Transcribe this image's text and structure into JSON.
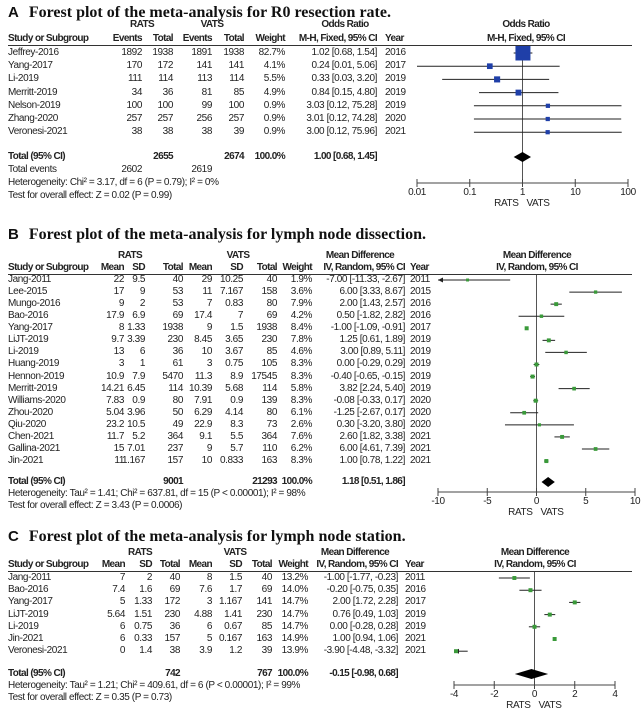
{
  "panels": {
    "A": {
      "letter": "A",
      "title": "Forest plot of the meta-analysis for R0 resection rate.",
      "groups": [
        "RATS",
        "VATS",
        "Odds Ratio"
      ],
      "columns": [
        "Study or Subgroup",
        "Events",
        "Total",
        "Events",
        "Total",
        "Weight",
        "M-H, Fixed, 95% CI",
        "Year"
      ],
      "plot_header": [
        "Odds Ratio",
        "M-H, Fixed, 95% CI"
      ],
      "rows": [
        [
          "Jeffrey-2016",
          "1892",
          "1938",
          "1891",
          "1938",
          "82.7%",
          "1.02 [0.68, 1.54]",
          "2016"
        ],
        [
          "Yang-2017",
          "170",
          "172",
          "141",
          "141",
          "4.1%",
          "0.24 [0.01, 5.06]",
          "2017"
        ],
        [
          "Li-2019",
          "111",
          "114",
          "113",
          "114",
          "5.5%",
          "0.33 [0.03, 3.20]",
          "2019"
        ],
        [
          "Merritt-2019",
          "34",
          "36",
          "81",
          "85",
          "4.9%",
          "0.84 [0.15, 4.80]",
          "2019"
        ],
        [
          "Nelson-2019",
          "100",
          "100",
          "99",
          "100",
          "0.9%",
          "3.03 [0.12, 75.28]",
          "2019"
        ],
        [
          "Zhang-2020",
          "257",
          "257",
          "256",
          "257",
          "0.9%",
          "3.01 [0.12, 74.28]",
          "2020"
        ],
        [
          "Veronesi-2021",
          "38",
          "38",
          "38",
          "39",
          "0.9%",
          "3.00 [0.12, 75.96]",
          "2021"
        ]
      ],
      "total": [
        "Total (95% CI)",
        "",
        "2655",
        "",
        "2674",
        "100.0%",
        "1.00 [0.68, 1.45]",
        ""
      ],
      "total_events": [
        "Total events",
        "2602",
        "",
        "2619"
      ],
      "heterogeneity": "Heterogeneity: Chi² = 3.17, df = 6 (P = 0.79); I² = 0%",
      "overall_effect": "Test for overall effect: Z = 0.02 (P = 0.99)",
      "axis_ticks": [
        "0.01",
        "0.1",
        "1",
        "10",
        "100"
      ],
      "axis_labels": [
        "RATS",
        "VATS"
      ],
      "marker_color": "#1f3fa8"
    },
    "B": {
      "letter": "B",
      "title": "Forest plot of the meta-analysis for lymph node dissection.",
      "groups": [
        "RATS",
        "VATS",
        "Mean Difference"
      ],
      "columns": [
        "Study or Subgroup",
        "Mean",
        "SD",
        "Total",
        "Mean",
        "SD",
        "Total",
        "Weight",
        "IV, Random, 95% CI",
        "Year"
      ],
      "plot_header": [
        "Mean Difference",
        "IV, Random, 95% CI"
      ],
      "rows": [
        [
          "Jang-2011",
          "22",
          "9.5",
          "40",
          "29",
          "10.25",
          "40",
          "1.9%",
          "-7.00 [-11.33, -2.67]",
          "2011"
        ],
        [
          "Lee-2015",
          "17",
          "9",
          "53",
          "11",
          "7.167",
          "158",
          "3.6%",
          "6.00 [3.33, 8.67]",
          "2015"
        ],
        [
          "Mungo-2016",
          "9",
          "2",
          "53",
          "7",
          "0.83",
          "80",
          "7.9%",
          "2.00 [1.43, 2.57]",
          "2016"
        ],
        [
          "Bao-2016",
          "17.9",
          "6.9",
          "69",
          "17.4",
          "7",
          "69",
          "4.2%",
          "0.50 [-1.82, 2.82]",
          "2016"
        ],
        [
          "Yang-2017",
          "8",
          "1.33",
          "1938",
          "9",
          "1.5",
          "1938",
          "8.4%",
          "-1.00 [-1.09, -0.91]",
          "2017"
        ],
        [
          "LiJT-2019",
          "9.7",
          "3.39",
          "230",
          "8.45",
          "3.65",
          "230",
          "7.8%",
          "1.25 [0.61, 1.89]",
          "2019"
        ],
        [
          "Li-2019",
          "13",
          "6",
          "36",
          "10",
          "3.67",
          "85",
          "4.6%",
          "3.00 [0.89, 5.11]",
          "2019"
        ],
        [
          "Huang-2019",
          "3",
          "1",
          "61",
          "3",
          "0.75",
          "105",
          "8.3%",
          "0.00 [-0.29, 0.29]",
          "2019"
        ],
        [
          "Hennon-2019",
          "10.9",
          "7.9",
          "5470",
          "11.3",
          "8.9",
          "17545",
          "8.3%",
          "-0.40 [-0.65, -0.15]",
          "2019"
        ],
        [
          "Merritt-2019",
          "14.21",
          "6.45",
          "114",
          "10.39",
          "5.68",
          "114",
          "5.8%",
          "3.82 [2.24, 5.40]",
          "2019"
        ],
        [
          "Williams-2020",
          "7.83",
          "0.9",
          "80",
          "7.91",
          "0.9",
          "139",
          "8.3%",
          "-0.08 [-0.33, 0.17]",
          "2020"
        ],
        [
          "Zhou-2020",
          "5.04",
          "3.96",
          "50",
          "6.29",
          "4.14",
          "80",
          "6.1%",
          "-1.25 [-2.67, 0.17]",
          "2020"
        ],
        [
          "Qiu-2020",
          "23.2",
          "10.5",
          "49",
          "22.9",
          "8.3",
          "73",
          "2.6%",
          "0.30 [-3.20, 3.80]",
          "2020"
        ],
        [
          "Chen-2021",
          "11.7",
          "5.2",
          "364",
          "9.1",
          "5.5",
          "364",
          "7.6%",
          "2.60 [1.82, 3.38]",
          "2021"
        ],
        [
          "Gallina-2021",
          "15",
          "7.01",
          "237",
          "9",
          "5.7",
          "110",
          "6.2%",
          "6.00 [4.61, 7.39]",
          "2021"
        ],
        [
          "Jin-2021",
          "11",
          "1.167",
          "157",
          "10",
          "0.833",
          "163",
          "8.3%",
          "1.00 [0.78, 1.22]",
          "2021"
        ]
      ],
      "total": [
        "Total (95% CI)",
        "",
        "",
        "9001",
        "",
        "",
        "21293",
        "100.0%",
        "1.18 [0.51, 1.86]",
        ""
      ],
      "heterogeneity": "Heterogeneity: Tau² = 1.41; Chi² = 637.81, df = 15 (P < 0.00001); I² = 98%",
      "overall_effect": "Test for overall effect: Z = 3.43 (P = 0.0006)",
      "axis_ticks": [
        "-10",
        "-5",
        "0",
        "5",
        "10"
      ],
      "axis_labels": [
        "RATS",
        "VATS"
      ],
      "marker_color": "#3a9a3a"
    },
    "C": {
      "letter": "C",
      "title": "Forest plot of the meta-analysis for lymph node station.",
      "groups": [
        "RATS",
        "VATS",
        "Mean Difference"
      ],
      "columns": [
        "Study or Subgroup",
        "Mean",
        "SD",
        "Total",
        "Mean",
        "SD",
        "Total",
        "Weight",
        "IV, Random, 95% CI",
        "Year"
      ],
      "plot_header": [
        "Mean Difference",
        "IV, Random, 95% CI"
      ],
      "rows": [
        [
          "Jang-2011",
          "7",
          "2",
          "40",
          "8",
          "1.5",
          "40",
          "13.2%",
          "-1.00 [-1.77, -0.23]",
          "2011"
        ],
        [
          "Bao-2016",
          "7.4",
          "1.6",
          "69",
          "7.6",
          "1.7",
          "69",
          "14.0%",
          "-0.20 [-0.75, 0.35]",
          "2016"
        ],
        [
          "Yang-2017",
          "5",
          "1.33",
          "172",
          "3",
          "1.167",
          "141",
          "14.7%",
          "2.00 [1.72, 2.28]",
          "2017"
        ],
        [
          "LiJT-2019",
          "5.64",
          "1.51",
          "230",
          "4.88",
          "1.41",
          "230",
          "14.7%",
          "0.76 [0.49, 1.03]",
          "2019"
        ],
        [
          "Li-2019",
          "6",
          "0.75",
          "36",
          "6",
          "0.67",
          "85",
          "14.7%",
          "0.00 [-0.28, 0.28]",
          "2019"
        ],
        [
          "Jin-2021",
          "6",
          "0.33",
          "157",
          "5",
          "0.167",
          "163",
          "14.9%",
          "1.00 [0.94, 1.06]",
          "2021"
        ],
        [
          "Veronesi-2021",
          "0",
          "1.4",
          "38",
          "3.9",
          "1.2",
          "39",
          "13.9%",
          "-3.90 [-4.48, -3.32]",
          "2021"
        ]
      ],
      "total": [
        "Total (95% CI)",
        "",
        "",
        "742",
        "",
        "",
        "767",
        "100.0%",
        "-0.15 [-0.98, 0.68]",
        ""
      ],
      "heterogeneity": "Heterogeneity: Tau² = 1.21; Chi² = 409.61, df = 6 (P < 0.00001); I² = 99%",
      "overall_effect": "Test for overall effect: Z = 0.35 (P = 0.73)",
      "axis_ticks": [
        "-4",
        "-2",
        "0",
        "2",
        "4"
      ],
      "axis_labels": [
        "RATS",
        "VATS"
      ],
      "marker_color": "#3a9a3a"
    }
  },
  "chart_data": [
    {
      "type": "scatter",
      "title": "Forest plot of the meta-analysis for R0 resection rate.",
      "xlabel": "Odds Ratio (M-H, Fixed, 95% CI)",
      "xscale": "log",
      "xlim": [
        0.01,
        100
      ],
      "studies": [
        "Jeffrey-2016",
        "Yang-2017",
        "Li-2019",
        "Merritt-2019",
        "Nelson-2019",
        "Zhang-2020",
        "Veronesi-2021"
      ],
      "estimate": [
        1.02,
        0.24,
        0.33,
        0.84,
        3.03,
        3.01,
        3.0
      ],
      "lower": [
        0.68,
        0.01,
        0.03,
        0.15,
        0.12,
        0.12,
        0.12
      ],
      "upper": [
        1.54,
        5.06,
        3.2,
        4.8,
        75.28,
        74.28,
        75.96
      ],
      "weight": [
        82.7,
        4.1,
        5.5,
        4.9,
        0.9,
        0.9,
        0.9
      ],
      "pooled": {
        "estimate": 1.0,
        "lower": 0.68,
        "upper": 1.45
      }
    },
    {
      "type": "scatter",
      "title": "Forest plot of the meta-analysis for lymph node dissection.",
      "xlabel": "Mean Difference (IV, Random, 95% CI)",
      "xscale": "linear",
      "xlim": [
        -10,
        10
      ],
      "studies": [
        "Jang-2011",
        "Lee-2015",
        "Mungo-2016",
        "Bao-2016",
        "Yang-2017",
        "LiJT-2019",
        "Li-2019",
        "Huang-2019",
        "Hennon-2019",
        "Merritt-2019",
        "Williams-2020",
        "Zhou-2020",
        "Qiu-2020",
        "Chen-2021",
        "Gallina-2021",
        "Jin-2021"
      ],
      "estimate": [
        -7.0,
        6.0,
        2.0,
        0.5,
        -1.0,
        1.25,
        3.0,
        0.0,
        -0.4,
        3.82,
        -0.08,
        -1.25,
        0.3,
        2.6,
        6.0,
        1.0
      ],
      "lower": [
        -11.33,
        3.33,
        1.43,
        -1.82,
        -1.09,
        0.61,
        0.89,
        -0.29,
        -0.65,
        2.24,
        -0.33,
        -2.67,
        -3.2,
        1.82,
        4.61,
        0.78
      ],
      "upper": [
        -2.67,
        8.67,
        2.57,
        2.82,
        -0.91,
        1.89,
        5.11,
        0.29,
        -0.15,
        5.4,
        0.17,
        0.17,
        3.8,
        3.38,
        7.39,
        1.22
      ],
      "weight": [
        1.9,
        3.6,
        7.9,
        4.2,
        8.4,
        7.8,
        4.6,
        8.3,
        8.3,
        5.8,
        8.3,
        6.1,
        2.6,
        7.6,
        6.2,
        8.3
      ],
      "pooled": {
        "estimate": 1.18,
        "lower": 0.51,
        "upper": 1.86
      }
    },
    {
      "type": "scatter",
      "title": "Forest plot of the meta-analysis for lymph node station.",
      "xlabel": "Mean Difference (IV, Random, 95% CI)",
      "xscale": "linear",
      "xlim": [
        -4,
        4
      ],
      "studies": [
        "Jang-2011",
        "Bao-2016",
        "Yang-2017",
        "LiJT-2019",
        "Li-2019",
        "Jin-2021",
        "Veronesi-2021"
      ],
      "estimate": [
        -1.0,
        -0.2,
        2.0,
        0.76,
        0.0,
        1.0,
        -3.9
      ],
      "lower": [
        -1.77,
        -0.75,
        1.72,
        0.49,
        -0.28,
        0.94,
        -4.48
      ],
      "upper": [
        -0.23,
        0.35,
        2.28,
        1.03,
        0.28,
        1.06,
        -3.32
      ],
      "weight": [
        13.2,
        14.0,
        14.7,
        14.7,
        14.7,
        14.9,
        13.9
      ],
      "pooled": {
        "estimate": -0.15,
        "lower": -0.98,
        "upper": 0.68
      }
    }
  ]
}
